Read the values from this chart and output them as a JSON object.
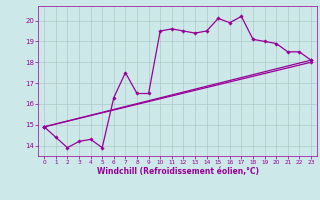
{
  "bg_color": "#cce8e8",
  "grid_color": "#b0c8c8",
  "line_color": "#990099",
  "marker_color": "#990099",
  "xlabel": "Windchill (Refroidissement éolien,°C)",
  "xlabel_color": "#990099",
  "tick_color": "#990099",
  "xlim": [
    -0.5,
    23.5
  ],
  "ylim": [
    13.5,
    20.7
  ],
  "yticks": [
    14,
    15,
    16,
    17,
    18,
    19,
    20
  ],
  "xticks": [
    0,
    1,
    2,
    3,
    4,
    5,
    6,
    7,
    8,
    9,
    10,
    11,
    12,
    13,
    14,
    15,
    16,
    17,
    18,
    19,
    20,
    21,
    22,
    23
  ],
  "series1_x": [
    0,
    1,
    2,
    3,
    4,
    5,
    6,
    7,
    8,
    9,
    10,
    11,
    12,
    13,
    14,
    15,
    16,
    17,
    18,
    19,
    20,
    21,
    22,
    23
  ],
  "series1_y": [
    14.9,
    14.4,
    13.9,
    14.2,
    14.3,
    13.9,
    16.3,
    17.5,
    16.5,
    16.5,
    19.5,
    19.6,
    19.5,
    19.4,
    19.5,
    20.1,
    19.9,
    20.2,
    19.1,
    19.0,
    18.9,
    18.5,
    18.5,
    18.1
  ],
  "series2_x": [
    0,
    23
  ],
  "series2_y": [
    14.9,
    18.1
  ],
  "series3_x": [
    0,
    23
  ],
  "series3_y": [
    14.9,
    18.0
  ]
}
